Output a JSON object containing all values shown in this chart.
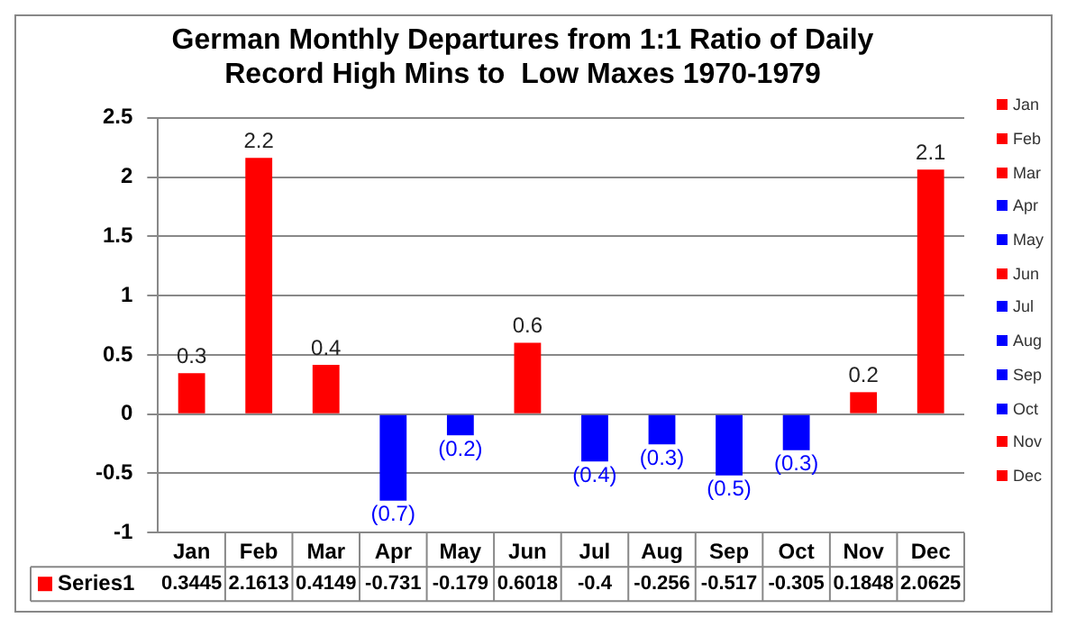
{
  "chart_data": {
    "type": "bar",
    "title": "German Monthly Departures from 1:1 Ratio of Daily Record High Mins to  Low Maxes 1970-1979",
    "categories": [
      "Jan",
      "Feb",
      "Mar",
      "Apr",
      "May",
      "Jun",
      "Jul",
      "Aug",
      "Sep",
      "Oct",
      "Nov",
      "Dec"
    ],
    "series": [
      {
        "name": "Series1",
        "color": "#ff0000",
        "values": [
          0.3445,
          2.1613,
          0.4149,
          -0.731,
          -0.179,
          0.6018,
          -0.4,
          -0.256,
          -0.517,
          -0.305,
          0.1848,
          2.0625
        ],
        "colors": [
          "#ff0000",
          "#ff0000",
          "#ff0000",
          "#0000ff",
          "#0000ff",
          "#ff0000",
          "#0000ff",
          "#0000ff",
          "#0000ff",
          "#0000ff",
          "#ff0000",
          "#ff0000"
        ]
      }
    ],
    "annotations": [
      {
        "text": "0.3",
        "x": "Jan",
        "y": 0.3445
      },
      {
        "text": "2.2",
        "x": "Feb",
        "y": 2.1613
      },
      {
        "text": "0.4",
        "x": "Mar",
        "y": 0.4149
      },
      {
        "text": "(0.7)",
        "x": "Apr",
        "y": -0.731
      },
      {
        "text": "(0.2)",
        "x": "May",
        "y": -0.179
      },
      {
        "text": "0.6",
        "x": "Jun",
        "y": 0.6018
      },
      {
        "text": "(0.4)",
        "x": "Jul",
        "y": -0.4
      },
      {
        "text": "(0.3)",
        "x": "Aug",
        "y": -0.256
      },
      {
        "text": "(0.5)",
        "x": "Sep",
        "y": -0.517
      },
      {
        "text": "(0.3)",
        "x": "Oct",
        "y": -0.305
      },
      {
        "text": "0.2",
        "x": "Nov",
        "y": 0.1848
      },
      {
        "text": "2.1",
        "x": "Dec",
        "y": 2.0625
      }
    ],
    "ylim": [
      -1,
      2.5
    ],
    "yticks": [
      -1,
      -0.5,
      0,
      0.5,
      1,
      1.5,
      2,
      2.5
    ],
    "grid": "y",
    "legend": "bottom left",
    "data_labels": true
  }
}
